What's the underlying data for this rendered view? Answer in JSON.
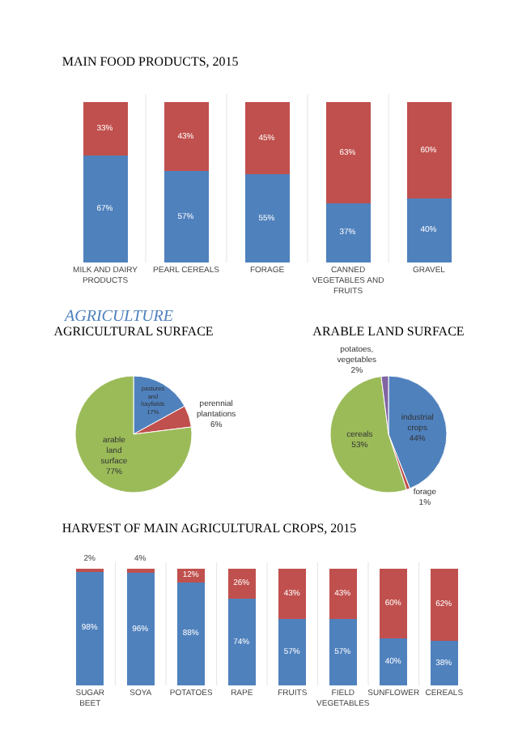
{
  "chart_data": [
    {
      "type": "bar",
      "title": "MAIN FOOD PRODUCTS, 2015",
      "stacked": true,
      "categories": [
        "MILK AND DAIRY PRODUCTS",
        "PEARL CEREALS",
        "FORAGE",
        "CANNED VEGETABLES AND FRUITS",
        "GRAVEL"
      ],
      "series": [
        {
          "color": "#4f81bd",
          "values": [
            67,
            57,
            55,
            37,
            40
          ],
          "value_labels": [
            "67%",
            "57%",
            "55%",
            "37%",
            "40%"
          ]
        },
        {
          "color": "#c0504d",
          "values": [
            33,
            43,
            45,
            63,
            60
          ],
          "value_labels": [
            "33%",
            "43%",
            "45%",
            "63%",
            "60%"
          ]
        }
      ],
      "legend": false
    },
    {
      "type": "pie",
      "title": "AGRICULTURAL SURFACE",
      "annotations": [
        "AGRICULTURE"
      ],
      "categories": [
        "pastures and hayfields",
        "perennial plantations",
        "arable land surface"
      ],
      "values": [
        17,
        6,
        77
      ],
      "value_labels": [
        "17%",
        "6%",
        "77%"
      ],
      "colors": [
        "#4f81bd",
        "#c0504d",
        "#9bbb59"
      ],
      "legend": false
    },
    {
      "type": "pie",
      "title": "ARABLE LAND SURFACE",
      "categories": [
        "industrial crops",
        "forage",
        "cereals",
        "potatoes, vegetables"
      ],
      "values": [
        44,
        1,
        53,
        2
      ],
      "value_labels": [
        "44%",
        "1%",
        "53%",
        "2%"
      ],
      "colors": [
        "#4f81bd",
        "#c0504d",
        "#9bbb59",
        "#8064a2"
      ],
      "legend": false
    },
    {
      "type": "bar",
      "title": "HARVEST OF MAIN AGRICULTURAL CROPS, 2015",
      "stacked": true,
      "categories": [
        "SUGAR BEET",
        "SOYA",
        "POTATOES",
        "RAPE",
        "FRUITS",
        "FIELD VEGETABLES",
        "SUNFLOWER",
        "CEREALS"
      ],
      "series": [
        {
          "color": "#4f81bd",
          "values": [
            98,
            96,
            88,
            74,
            57,
            57,
            40,
            38
          ],
          "value_labels": [
            "98%",
            "96%",
            "88%",
            "74%",
            "57%",
            "57%",
            "40%",
            "38%"
          ]
        },
        {
          "color": "#c0504d",
          "values": [
            2,
            4,
            12,
            26,
            43,
            43,
            60,
            62
          ],
          "value_labels": [
            "2%",
            "4%",
            "12%",
            "26%",
            "43%",
            "43%",
            "60%",
            "62%"
          ]
        }
      ],
      "legend": false
    }
  ]
}
